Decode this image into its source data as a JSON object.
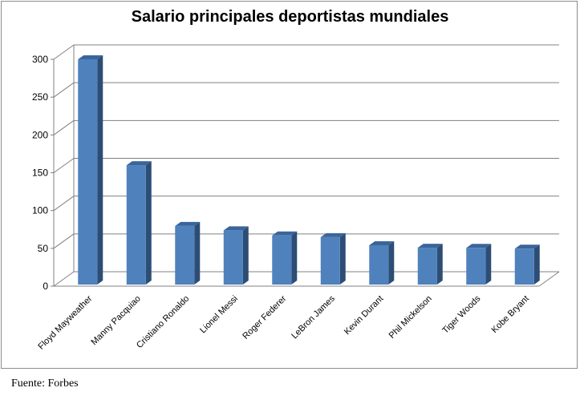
{
  "chart_data": {
    "type": "bar",
    "title": "Salario principales deportistas mundiales",
    "categories": [
      "Floyd Mayweather",
      "Manny Pacquiao",
      "Cristiano Ronaldo",
      "Lionel Messi",
      "Roger Federer",
      "LeBron James",
      "Kevin Durant",
      "Phil Mickelson",
      "Tiger Woods",
      "Kobe Bryant"
    ],
    "values": [
      300,
      160,
      79.6,
      73.8,
      67,
      64.8,
      54.1,
      50.8,
      50.6,
      49.5
    ],
    "yticks": [
      "0",
      "50",
      "100",
      "150",
      "200",
      "250",
      "300"
    ],
    "ylim": [
      0,
      300
    ],
    "grid": true,
    "style": "3d-column",
    "colors": {
      "bar_front": "#4f81bd",
      "bar_side": "#2c4d75",
      "bar_top": "#3a659b",
      "grid": "#808080"
    }
  },
  "footer": {
    "source": "Fuente: Forbes"
  }
}
